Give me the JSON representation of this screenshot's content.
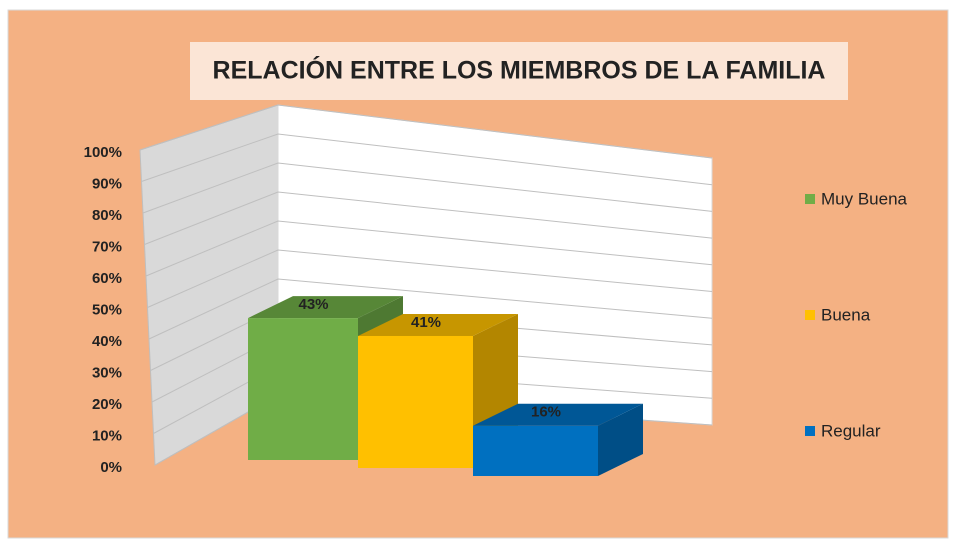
{
  "chart_data": {
    "type": "bar3d",
    "title": "RELACIÓN ENTRE LOS MIEMBROS DE LA FAMILIA",
    "categories": [
      null
    ],
    "series": [
      {
        "name": "Muy Buena",
        "color": "#70ad47",
        "values": [
          43
        ],
        "value_labels": [
          "43%"
        ]
      },
      {
        "name": "Buena",
        "color": "#ffc000",
        "values": [
          41
        ],
        "value_labels": [
          "41%"
        ]
      },
      {
        "name": "Regular",
        "color": "#0070c0",
        "values": [
          16
        ],
        "value_labels": [
          "16%"
        ]
      }
    ],
    "ylim": [
      0,
      100
    ],
    "yticks": [
      {
        "value": 0,
        "label": "0%"
      },
      {
        "value": 10,
        "label": "10%"
      },
      {
        "value": 20,
        "label": "20%"
      },
      {
        "value": 30,
        "label": "30%"
      },
      {
        "value": 40,
        "label": "40%"
      },
      {
        "value": 50,
        "label": "50%"
      },
      {
        "value": 60,
        "label": "60%"
      },
      {
        "value": 70,
        "label": "70%"
      },
      {
        "value": 80,
        "label": "80%"
      },
      {
        "value": 90,
        "label": "90%"
      },
      {
        "value": 100,
        "label": "100%"
      }
    ],
    "grid": true,
    "legend": "right"
  }
}
